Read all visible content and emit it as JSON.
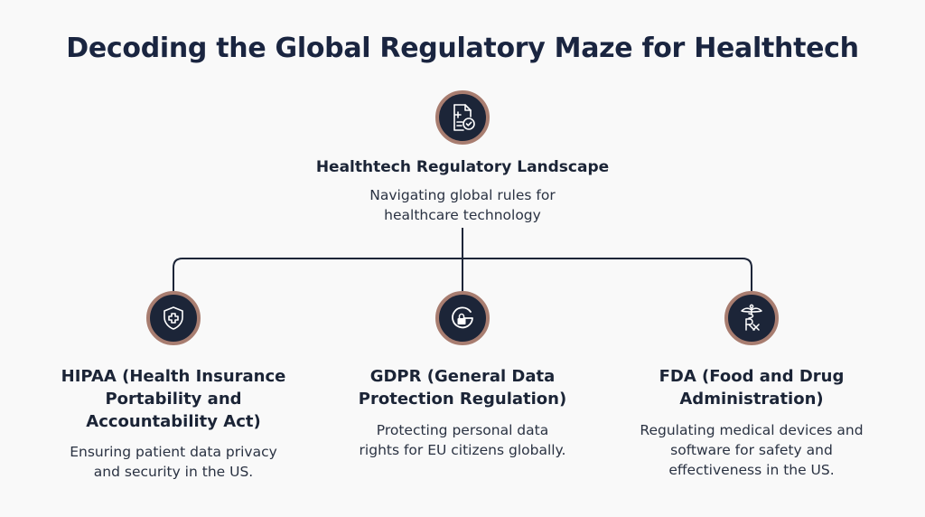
{
  "title": "Decoding the Global Regulatory Maze for Healthtech",
  "colors": {
    "icon_fill": "#1c2538",
    "icon_ring": "#a87d70",
    "connector": "#1c2538",
    "text": "#1b2436"
  },
  "root": {
    "icon": "medical-document-check-icon",
    "title": "Healthtech Regulatory Landscape",
    "desc_lines": [
      "Navigating global rules for",
      "healthcare technology"
    ]
  },
  "children": [
    {
      "icon": "shield-medical-cross-icon",
      "title_lines": [
        "HIPAA (Health Insurance",
        "Portability and",
        "Accountability Act)"
      ],
      "desc_lines": [
        "Ensuring patient data privacy",
        "and security in the US."
      ]
    },
    {
      "icon": "g-lock-icon",
      "title_lines": [
        "GDPR (General Data",
        "Protection Regulation)"
      ],
      "desc_lines": [
        "Protecting personal data",
        "rights for EU citizens globally."
      ]
    },
    {
      "icon": "caduceus-rx-icon",
      "title_lines": [
        "FDA (Food and Drug",
        "Administration)"
      ],
      "desc_lines": [
        "Regulating medical devices and",
        "software for safety and",
        "effectiveness in the US."
      ]
    }
  ]
}
